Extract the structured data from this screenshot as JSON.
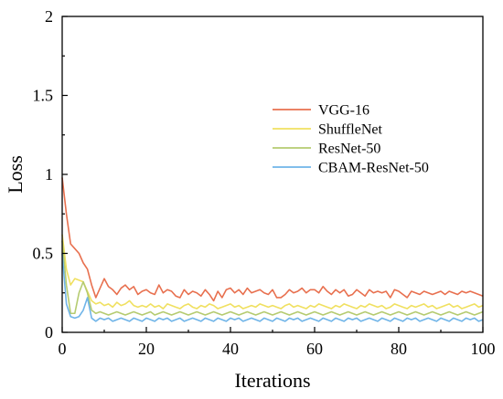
{
  "chart_data": {
    "type": "line",
    "xlabel": "Iterations",
    "ylabel": "Loss",
    "xlim": [
      0,
      100
    ],
    "ylim": [
      0,
      2
    ],
    "x_ticks": [
      "0",
      "20",
      "40",
      "60",
      "80",
      "100"
    ],
    "y_ticks": [
      "0",
      "0.5",
      "1",
      "1.5",
      "2"
    ],
    "grid": false,
    "legend_position": "top-right",
    "x": [
      0,
      1,
      2,
      3,
      4,
      5,
      6,
      7,
      8,
      9,
      10,
      11,
      12,
      13,
      14,
      15,
      16,
      17,
      18,
      19,
      20,
      21,
      22,
      23,
      24,
      25,
      26,
      27,
      28,
      29,
      30,
      31,
      32,
      33,
      34,
      35,
      36,
      37,
      38,
      39,
      40,
      41,
      42,
      43,
      44,
      45,
      46,
      47,
      48,
      49,
      50,
      51,
      52,
      53,
      54,
      55,
      56,
      57,
      58,
      59,
      60,
      61,
      62,
      63,
      64,
      65,
      66,
      67,
      68,
      69,
      70,
      71,
      72,
      73,
      74,
      75,
      76,
      77,
      78,
      79,
      80,
      81,
      82,
      83,
      84,
      85,
      86,
      87,
      88,
      89,
      90,
      91,
      92,
      93,
      94,
      95,
      96,
      97,
      98,
      99,
      100
    ],
    "series": [
      {
        "name": "VGG-16",
        "color": "#E8704F",
        "values": [
          0.98,
          0.75,
          0.56,
          0.53,
          0.5,
          0.44,
          0.4,
          0.3,
          0.22,
          0.28,
          0.34,
          0.29,
          0.27,
          0.24,
          0.28,
          0.3,
          0.27,
          0.29,
          0.24,
          0.26,
          0.27,
          0.25,
          0.24,
          0.3,
          0.25,
          0.27,
          0.26,
          0.23,
          0.22,
          0.27,
          0.24,
          0.26,
          0.25,
          0.23,
          0.27,
          0.24,
          0.2,
          0.26,
          0.22,
          0.27,
          0.28,
          0.25,
          0.27,
          0.24,
          0.28,
          0.25,
          0.26,
          0.27,
          0.25,
          0.24,
          0.27,
          0.22,
          0.22,
          0.24,
          0.27,
          0.25,
          0.26,
          0.28,
          0.25,
          0.27,
          0.27,
          0.25,
          0.29,
          0.26,
          0.24,
          0.27,
          0.25,
          0.27,
          0.23,
          0.24,
          0.27,
          0.25,
          0.23,
          0.27,
          0.25,
          0.26,
          0.25,
          0.26,
          0.22,
          0.27,
          0.26,
          0.24,
          0.22,
          0.26,
          0.25,
          0.24,
          0.26,
          0.25,
          0.24,
          0.25,
          0.26,
          0.24,
          0.26,
          0.25,
          0.24,
          0.26,
          0.25,
          0.26,
          0.25,
          0.24,
          0.23
        ]
      },
      {
        "name": "ShuffleNet",
        "color": "#F0E060",
        "values": [
          0.62,
          0.4,
          0.3,
          0.34,
          0.33,
          0.32,
          0.26,
          0.2,
          0.18,
          0.19,
          0.17,
          0.18,
          0.16,
          0.19,
          0.17,
          0.18,
          0.2,
          0.17,
          0.16,
          0.17,
          0.16,
          0.18,
          0.16,
          0.17,
          0.15,
          0.18,
          0.17,
          0.16,
          0.15,
          0.17,
          0.18,
          0.16,
          0.15,
          0.17,
          0.16,
          0.18,
          0.17,
          0.15,
          0.16,
          0.17,
          0.18,
          0.16,
          0.17,
          0.15,
          0.16,
          0.17,
          0.16,
          0.18,
          0.17,
          0.16,
          0.17,
          0.16,
          0.15,
          0.17,
          0.18,
          0.16,
          0.17,
          0.16,
          0.15,
          0.17,
          0.16,
          0.18,
          0.17,
          0.16,
          0.15,
          0.17,
          0.16,
          0.18,
          0.17,
          0.16,
          0.15,
          0.17,
          0.16,
          0.18,
          0.17,
          0.16,
          0.17,
          0.15,
          0.16,
          0.18,
          0.17,
          0.16,
          0.15,
          0.17,
          0.16,
          0.17,
          0.18,
          0.16,
          0.17,
          0.15,
          0.16,
          0.17,
          0.18,
          0.16,
          0.17,
          0.15,
          0.16,
          0.17,
          0.18,
          0.16,
          0.17
        ]
      },
      {
        "name": "ResNet-50",
        "color": "#B5CB70",
        "values": [
          0.58,
          0.3,
          0.12,
          0.12,
          0.25,
          0.32,
          0.25,
          0.14,
          0.12,
          0.13,
          0.12,
          0.11,
          0.12,
          0.13,
          0.12,
          0.11,
          0.12,
          0.13,
          0.12,
          0.11,
          0.12,
          0.13,
          0.11,
          0.12,
          0.13,
          0.12,
          0.11,
          0.12,
          0.13,
          0.12,
          0.11,
          0.12,
          0.13,
          0.12,
          0.11,
          0.12,
          0.13,
          0.12,
          0.11,
          0.12,
          0.13,
          0.12,
          0.11,
          0.12,
          0.13,
          0.12,
          0.11,
          0.12,
          0.13,
          0.12,
          0.11,
          0.12,
          0.13,
          0.12,
          0.11,
          0.12,
          0.13,
          0.12,
          0.11,
          0.12,
          0.13,
          0.12,
          0.11,
          0.12,
          0.13,
          0.12,
          0.11,
          0.12,
          0.13,
          0.12,
          0.11,
          0.12,
          0.13,
          0.12,
          0.11,
          0.12,
          0.13,
          0.12,
          0.11,
          0.12,
          0.13,
          0.12,
          0.11,
          0.12,
          0.13,
          0.12,
          0.11,
          0.12,
          0.13,
          0.12,
          0.11,
          0.12,
          0.13,
          0.12,
          0.11,
          0.12,
          0.13,
          0.12,
          0.11,
          0.12,
          0.13
        ]
      },
      {
        "name": "CBAM-ResNet-50",
        "color": "#6FB4E8",
        "values": [
          0.5,
          0.18,
          0.1,
          0.09,
          0.1,
          0.14,
          0.22,
          0.09,
          0.07,
          0.09,
          0.08,
          0.09,
          0.07,
          0.08,
          0.09,
          0.08,
          0.07,
          0.09,
          0.08,
          0.07,
          0.09,
          0.08,
          0.07,
          0.09,
          0.08,
          0.09,
          0.07,
          0.08,
          0.09,
          0.07,
          0.08,
          0.09,
          0.08,
          0.07,
          0.09,
          0.08,
          0.07,
          0.09,
          0.08,
          0.07,
          0.09,
          0.08,
          0.09,
          0.07,
          0.08,
          0.09,
          0.08,
          0.07,
          0.09,
          0.08,
          0.07,
          0.09,
          0.08,
          0.07,
          0.09,
          0.08,
          0.09,
          0.07,
          0.08,
          0.09,
          0.08,
          0.07,
          0.09,
          0.08,
          0.07,
          0.09,
          0.08,
          0.07,
          0.09,
          0.08,
          0.09,
          0.07,
          0.08,
          0.09,
          0.08,
          0.07,
          0.09,
          0.08,
          0.07,
          0.09,
          0.08,
          0.07,
          0.09,
          0.08,
          0.09,
          0.07,
          0.08,
          0.09,
          0.08,
          0.07,
          0.09,
          0.08,
          0.07,
          0.09,
          0.08,
          0.07,
          0.09,
          0.08,
          0.09,
          0.07,
          0.08
        ]
      }
    ]
  }
}
